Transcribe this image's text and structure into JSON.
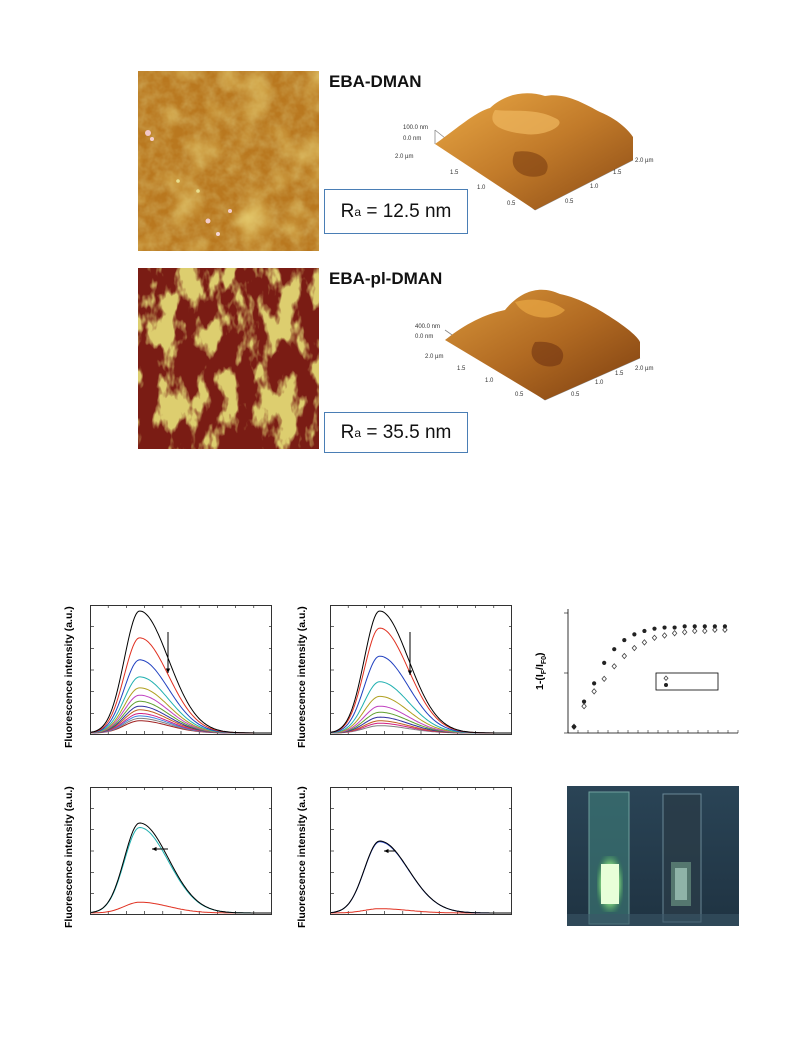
{
  "afm": {
    "panels": [
      {
        "title": "EBA-DMAN",
        "ra_symbol": "R",
        "ra_sub": "a",
        "ra_value": " = 12.5 nm",
        "z_label": "100.0 nm",
        "z0_label": "0.0 nm",
        "ticks_left": [
          "2.0 µm",
          "1.5",
          "1.0",
          "0.5"
        ],
        "ticks_right": [
          "2.0 µm",
          "1.5",
          "1.0",
          "0.5"
        ]
      },
      {
        "title": "EBA-pl-DMAN",
        "ra_symbol": "R",
        "ra_sub": "a",
        "ra_value": " = 35.5 nm",
        "z_label": "400.0 nm",
        "z0_label": "0.0 nm",
        "ticks_left": [
          "2.0 µm",
          "1.5",
          "1.0",
          "0.5"
        ],
        "ticks_right": [
          "2.0 µm",
          "1.5",
          "1.0",
          "0.5"
        ]
      }
    ]
  },
  "plots": {
    "ylabel_fluorescence": "Fluorescence intensity (a.u.)",
    "ylabel_quench": "1-(I",
    "ylabel_quench_sub1": "F",
    "ylabel_quench_mid": "/I",
    "ylabel_quench_sub2": "F0",
    "ylabel_quench_end": ")"
  },
  "chart_data": [
    {
      "type": "line",
      "panel": "top-left",
      "title": "",
      "xlabel": "",
      "ylabel": "Fluorescence intensity (a.u.)",
      "description_of_marks": "Emission spectra decreasing in intensity (quenching series), arrow pointing down",
      "series": [
        {
          "name": "",
          "color": "#000000",
          "peak": 1.0
        },
        {
          "name": "",
          "color": "#e03020",
          "peak": 0.78
        },
        {
          "name": "",
          "color": "#2040c0",
          "peak": 0.6
        },
        {
          "name": "",
          "color": "#20b0b0",
          "peak": 0.46
        },
        {
          "name": "",
          "color": "#b0a020",
          "peak": 0.37
        },
        {
          "name": "",
          "color": "#c040c0",
          "peak": 0.31
        },
        {
          "name": "",
          "color": "#60a030",
          "peak": 0.26
        },
        {
          "name": "",
          "color": "#3030a0",
          "peak": 0.22
        },
        {
          "name": "",
          "color": "#c06020",
          "peak": 0.19
        },
        {
          "name": "",
          "color": "#d02080",
          "peak": 0.16
        },
        {
          "name": "",
          "color": "#4080e0",
          "peak": 0.14
        },
        {
          "name": "",
          "color": "#808080",
          "peak": 0.12
        },
        {
          "name": "",
          "color": "#a02020",
          "peak": 0.1
        }
      ]
    },
    {
      "type": "line",
      "panel": "top-middle",
      "title": "",
      "xlabel": "",
      "ylabel": "Fluorescence intensity (a.u.)",
      "series": [
        {
          "name": "",
          "color": "#000000",
          "peak": 1.0
        },
        {
          "name": "",
          "color": "#e03020",
          "peak": 0.86
        },
        {
          "name": "",
          "color": "#2040c0",
          "peak": 0.63
        },
        {
          "name": "",
          "color": "#20b0b0",
          "peak": 0.42
        },
        {
          "name": "",
          "color": "#b0a020",
          "peak": 0.3
        },
        {
          "name": "",
          "color": "#c040c0",
          "peak": 0.22
        },
        {
          "name": "",
          "color": "#60a030",
          "peak": 0.17
        },
        {
          "name": "",
          "color": "#3030a0",
          "peak": 0.13
        },
        {
          "name": "",
          "color": "#c06020",
          "peak": 0.1
        },
        {
          "name": "",
          "color": "#d02080",
          "peak": 0.08
        },
        {
          "name": "",
          "color": "#808080",
          "peak": 0.06
        }
      ]
    },
    {
      "type": "scatter",
      "panel": "top-right",
      "title": "",
      "xlabel": "",
      "ylabel": "1-(IF/IF0)",
      "ylim": [
        0,
        1
      ],
      "series": [
        {
          "name": "",
          "marker": "filled-circle",
          "x": [
            0,
            1,
            2,
            3,
            4,
            5,
            6,
            7,
            8,
            9,
            10,
            11,
            12,
            13,
            14,
            15
          ],
          "y": [
            0.02,
            0.24,
            0.4,
            0.58,
            0.7,
            0.78,
            0.83,
            0.86,
            0.88,
            0.89,
            0.89,
            0.9,
            0.9,
            0.9,
            0.9,
            0.9
          ]
        },
        {
          "name": "",
          "marker": "open-diamond",
          "x": [
            0,
            1,
            2,
            3,
            4,
            5,
            6,
            7,
            8,
            9,
            10,
            11,
            12,
            13,
            14,
            15
          ],
          "y": [
            0.02,
            0.2,
            0.33,
            0.44,
            0.55,
            0.64,
            0.71,
            0.76,
            0.8,
            0.82,
            0.84,
            0.85,
            0.86,
            0.86,
            0.87,
            0.87
          ]
        }
      ]
    },
    {
      "type": "line",
      "panel": "bottom-left",
      "title": "",
      "xlabel": "",
      "ylabel": "Fluorescence intensity (a.u.)",
      "series": [
        {
          "name": "",
          "color": "#000000",
          "peak": 1.0
        },
        {
          "name": "",
          "color": "#20b0b0",
          "peak": 0.95
        },
        {
          "name": "",
          "color": "#e03020",
          "peak": 0.12
        }
      ]
    },
    {
      "type": "line",
      "panel": "bottom-middle",
      "title": "",
      "xlabel": "",
      "ylabel": "Fluorescence intensity (a.u.)",
      "series": [
        {
          "name": "",
          "color": "#000000",
          "peak": 1.0
        },
        {
          "name": "",
          "color": "#2040c0",
          "peak": 0.99
        },
        {
          "name": "",
          "color": "#e03020",
          "peak": 0.06
        }
      ]
    }
  ]
}
